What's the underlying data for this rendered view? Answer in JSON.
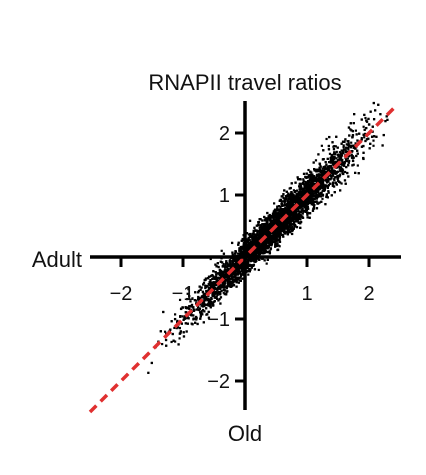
{
  "chart_data": {
    "type": "scatter",
    "title": "RNAPII travel ratios",
    "xlabel": "Adult",
    "ylabel": "Old",
    "xlim": [
      -2.6,
      2.6
    ],
    "ylim": [
      -2.5,
      2.4
    ],
    "x_ticks": [
      {
        "value": -2,
        "label": "−2"
      },
      {
        "value": -1,
        "label": "−1"
      },
      {
        "value": 1,
        "label": "1"
      },
      {
        "value": 2,
        "label": "2"
      }
    ],
    "y_ticks": [
      {
        "value": -2,
        "label": "−2"
      },
      {
        "value": -1,
        "label": "−1"
      },
      {
        "value": 1,
        "label": "1"
      },
      {
        "value": 2,
        "label": "2"
      }
    ],
    "reference_line": {
      "slope": 1,
      "intercept": 0,
      "style": "dashed",
      "color": "#e03030"
    },
    "grid": false,
    "point_color": "#000000",
    "cloud": {
      "n_points": 6000,
      "x_range": [
        -1.7,
        2.3
      ],
      "x_mean": 0.45,
      "x_sd": 0.65,
      "slope": 1.0,
      "intercept": 0.0,
      "residual_sd": 0.13
    }
  }
}
